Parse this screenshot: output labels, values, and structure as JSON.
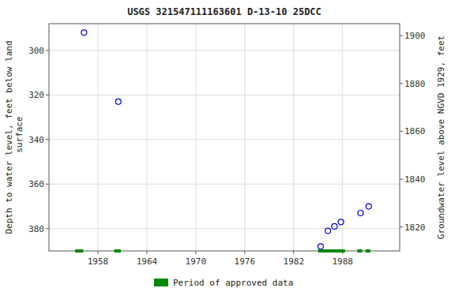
{
  "chart_data": {
    "type": "scatter",
    "title": "USGS 321547111163601 D-13-10 25DCC",
    "ylabel": "Depth to water level, feet below land\n surface",
    "y2label": "Groundwater level above NGVD 1929, feet",
    "xlim": [
      1952,
      1995
    ],
    "xticks": [
      1958,
      1964,
      1970,
      1976,
      1982,
      1988
    ],
    "ylim": [
      390,
      288
    ],
    "yticks": [
      300,
      320,
      340,
      360,
      380
    ],
    "y2lim": [
      1810,
      1905
    ],
    "y2ticks": [
      1820,
      1840,
      1860,
      1880,
      1900
    ],
    "grid": true,
    "legend": "bottom",
    "series": [
      {
        "type": "scatter",
        "marker": "open-circle",
        "color": "#0000cc",
        "x": [
          1956.3,
          1960.5,
          1985.3,
          1986.2,
          1987.0,
          1987.8,
          1990.2,
          1991.2
        ],
        "values": [
          292,
          323,
          388,
          381,
          379,
          377,
          373,
          370
        ]
      },
      {
        "name": "Period of approved data",
        "type": "segments",
        "color": "#008800",
        "x_start": [
          1955.2,
          1960.0,
          1985.0,
          1989.8,
          1990.8
        ],
        "x_end": [
          1956.2,
          1960.8,
          1988.3,
          1990.4,
          1991.4
        ]
      }
    ]
  }
}
